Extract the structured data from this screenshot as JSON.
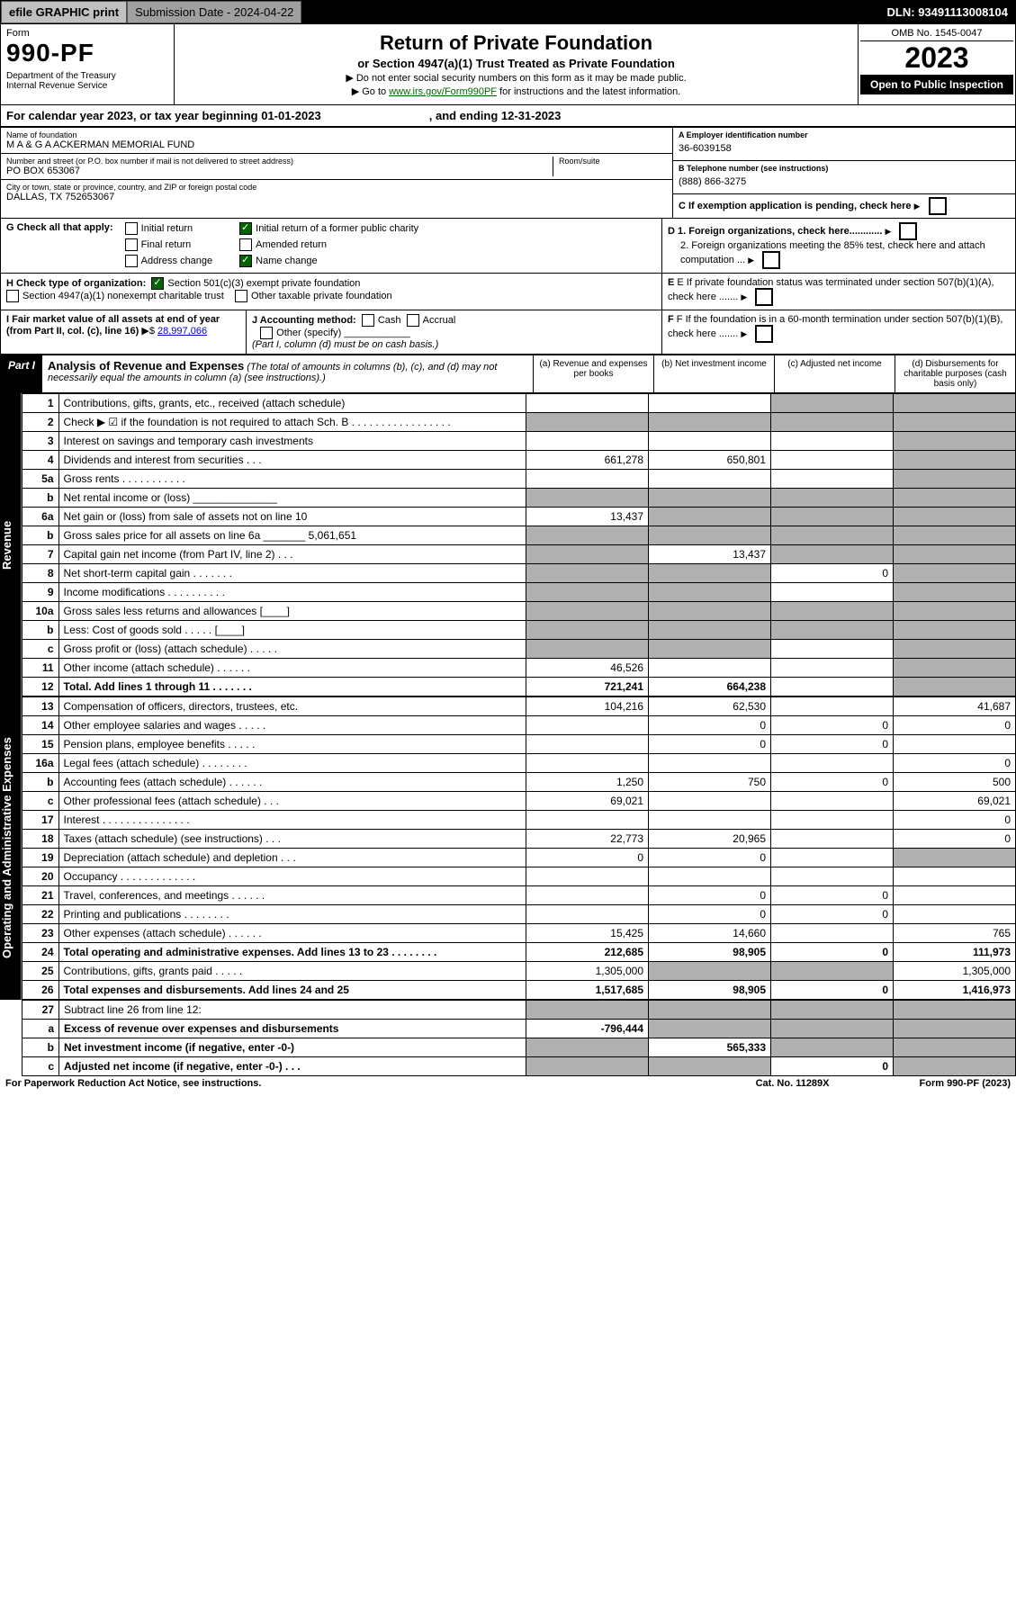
{
  "topbar": {
    "efile": "efile GRAPHIC print",
    "subdate_label": "Submission Date - 2024-04-22",
    "dln": "DLN: 93491113008104"
  },
  "header": {
    "form_word": "Form",
    "form_num": "990-PF",
    "dept": "Department of the Treasury\nInternal Revenue Service",
    "title": "Return of Private Foundation",
    "subtitle": "or Section 4947(a)(1) Trust Treated as Private Foundation",
    "note1": "▶ Do not enter social security numbers on this form as it may be made public.",
    "note2_pre": "▶ Go to ",
    "note2_link": "www.irs.gov/Form990PF",
    "note2_post": " for instructions and the latest information.",
    "omb": "OMB No. 1545-0047",
    "year": "2023",
    "open": "Open to Public Inspection"
  },
  "cal": {
    "text_a": "For calendar year 2023, or tax year beginning 01-01-2023",
    "text_b": ", and ending 12-31-2023"
  },
  "id": {
    "name_lbl": "Name of foundation",
    "name": "M A & G A ACKERMAN MEMORIAL FUND",
    "ein_lbl": "A Employer identification number",
    "ein": "36-6039158",
    "addr_lbl": "Number and street (or P.O. box number if mail is not delivered to street address)",
    "addr": "PO BOX 653067",
    "room_lbl": "Room/suite",
    "tel_lbl": "B Telephone number (see instructions)",
    "tel": "(888) 866-3275",
    "city_lbl": "City or town, state or province, country, and ZIP or foreign postal code",
    "city": "DALLAS, TX  752653067",
    "c_lbl": "C If exemption application is pending, check here"
  },
  "g": {
    "lead": "G Check all that apply:",
    "initial": "Initial return",
    "initial_former": "Initial return of a former public charity",
    "final": "Final return",
    "amended": "Amended return",
    "addr": "Address change",
    "name": "Name change"
  },
  "d": {
    "d1": "D 1. Foreign organizations, check here............",
    "d2": "2. Foreign organizations meeting the 85% test, check here and attach computation ..."
  },
  "h": {
    "lead": "H Check type of organization:",
    "s501": "Section 501(c)(3) exempt private foundation",
    "s4947": "Section 4947(a)(1) nonexempt charitable trust",
    "other": "Other taxable private foundation"
  },
  "e": "E If private foundation status was terminated under section 507(b)(1)(A), check here .......",
  "i": {
    "lead": "I Fair market value of all assets at end of year (from Part II, col. (c), line 16)",
    "val": "28,997,066"
  },
  "j": {
    "lead": "J Accounting method:",
    "cash": "Cash",
    "accrual": "Accrual",
    "other": "Other (specify)",
    "note": "(Part I, column (d) must be on cash basis.)"
  },
  "f": "F If the foundation is in a 60-month termination under section 507(b)(1)(B), check here .......",
  "part1": {
    "label": "Part I",
    "title": "Analysis of Revenue and Expenses",
    "note": " (The total of amounts in columns (b), (c), and (d) may not necessarily equal the amounts in column (a) (see instructions).)",
    "cols": {
      "a": "(a) Revenue and expenses per books",
      "b": "(b) Net investment income",
      "c": "(c) Adjusted net income",
      "d": "(d) Disbursements for charitable purposes (cash basis only)"
    }
  },
  "sidelabels": {
    "rev": "Revenue",
    "exp": "Operating and Administrative Expenses"
  },
  "rows": [
    {
      "n": "1",
      "d": "Contributions, gifts, grants, etc., received (attach schedule)",
      "a": "",
      "b": "",
      "c": "s",
      "dd": "s"
    },
    {
      "n": "2",
      "d": "Check ▶ ☑ if the foundation is not required to attach Sch. B  . . . . . . . . . . . . . . . . .",
      "a": "s",
      "b": "s",
      "c": "s",
      "dd": "s"
    },
    {
      "n": "3",
      "d": "Interest on savings and temporary cash investments",
      "a": "",
      "b": "",
      "c": "",
      "dd": "s"
    },
    {
      "n": "4",
      "d": "Dividends and interest from securities  . . .",
      "a": "661,278",
      "b": "650,801",
      "c": "",
      "dd": "s"
    },
    {
      "n": "5a",
      "d": "Gross rents  . . . . . . . . . . .",
      "a": "",
      "b": "",
      "c": "",
      "dd": "s"
    },
    {
      "n": "b",
      "d": "Net rental income or (loss)  ______________",
      "a": "s",
      "b": "s",
      "c": "s",
      "dd": "s"
    },
    {
      "n": "6a",
      "d": "Net gain or (loss) from sale of assets not on line 10",
      "a": "13,437",
      "b": "s",
      "c": "s",
      "dd": "s"
    },
    {
      "n": "b",
      "d": "Gross sales price for all assets on line 6a _______ 5,061,651",
      "a": "s",
      "b": "s",
      "c": "s",
      "dd": "s"
    },
    {
      "n": "7",
      "d": "Capital gain net income (from Part IV, line 2)  . . .",
      "a": "s",
      "b": "13,437",
      "c": "s",
      "dd": "s"
    },
    {
      "n": "8",
      "d": "Net short-term capital gain  . . . . . . .",
      "a": "s",
      "b": "s",
      "c": "0",
      "dd": "s"
    },
    {
      "n": "9",
      "d": "Income modifications . . . . . . . . . .",
      "a": "s",
      "b": "s",
      "c": "",
      "dd": "s"
    },
    {
      "n": "10a",
      "d": "Gross sales less returns and allowances  [____]",
      "a": "s",
      "b": "s",
      "c": "s",
      "dd": "s"
    },
    {
      "n": "b",
      "d": "Less: Cost of goods sold  . . . . .  [____]",
      "a": "s",
      "b": "s",
      "c": "s",
      "dd": "s"
    },
    {
      "n": "c",
      "d": "Gross profit or (loss) (attach schedule)  . . . . .",
      "a": "s",
      "b": "s",
      "c": "",
      "dd": "s"
    },
    {
      "n": "11",
      "d": "Other income (attach schedule)  . . . . . .",
      "a": "46,526",
      "b": "",
      "c": "",
      "dd": "s"
    },
    {
      "n": "12",
      "d": "Total. Add lines 1 through 11  . . . . . . .",
      "a": "721,241",
      "b": "664,238",
      "c": "",
      "dd": "s",
      "bold": true
    }
  ],
  "exprows": [
    {
      "n": "13",
      "d": "Compensation of officers, directors, trustees, etc.",
      "a": "104,216",
      "b": "62,530",
      "c": "",
      "dd": "41,687"
    },
    {
      "n": "14",
      "d": "Other employee salaries and wages  . . . . .",
      "a": "",
      "b": "0",
      "c": "0",
      "dd": "0"
    },
    {
      "n": "15",
      "d": "Pension plans, employee benefits  . . . . .",
      "a": "",
      "b": "0",
      "c": "0",
      "dd": ""
    },
    {
      "n": "16a",
      "d": "Legal fees (attach schedule) . . . . . . . .",
      "a": "",
      "b": "",
      "c": "",
      "dd": "0"
    },
    {
      "n": "b",
      "d": "Accounting fees (attach schedule) . . . . . .",
      "a": "1,250",
      "b": "750",
      "c": "0",
      "dd": "500"
    },
    {
      "n": "c",
      "d": "Other professional fees (attach schedule)  . . .",
      "a": "69,021",
      "b": "",
      "c": "",
      "dd": "69,021"
    },
    {
      "n": "17",
      "d": "Interest . . . . . . . . . . . . . . .",
      "a": "",
      "b": "",
      "c": "",
      "dd": "0"
    },
    {
      "n": "18",
      "d": "Taxes (attach schedule) (see instructions)  . . .",
      "a": "22,773",
      "b": "20,965",
      "c": "",
      "dd": "0"
    },
    {
      "n": "19",
      "d": "Depreciation (attach schedule) and depletion  . . .",
      "a": "0",
      "b": "0",
      "c": "",
      "dd": "s"
    },
    {
      "n": "20",
      "d": "Occupancy . . . . . . . . . . . . .",
      "a": "",
      "b": "",
      "c": "",
      "dd": ""
    },
    {
      "n": "21",
      "d": "Travel, conferences, and meetings . . . . . .",
      "a": "",
      "b": "0",
      "c": "0",
      "dd": ""
    },
    {
      "n": "22",
      "d": "Printing and publications . . . . . . . .",
      "a": "",
      "b": "0",
      "c": "0",
      "dd": ""
    },
    {
      "n": "23",
      "d": "Other expenses (attach schedule) . . . . . .",
      "a": "15,425",
      "b": "14,660",
      "c": "",
      "dd": "765"
    },
    {
      "n": "24",
      "d": "Total operating and administrative expenses. Add lines 13 to 23  . . . . . . . .",
      "a": "212,685",
      "b": "98,905",
      "c": "0",
      "dd": "111,973",
      "bold": true
    },
    {
      "n": "25",
      "d": "Contributions, gifts, grants paid  . . . . .",
      "a": "1,305,000",
      "b": "s",
      "c": "s",
      "dd": "1,305,000"
    },
    {
      "n": "26",
      "d": "Total expenses and disbursements. Add lines 24 and 25",
      "a": "1,517,685",
      "b": "98,905",
      "c": "0",
      "dd": "1,416,973",
      "bold": true
    }
  ],
  "row27": [
    {
      "n": "27",
      "d": "Subtract line 26 from line 12:",
      "a": "s",
      "b": "s",
      "c": "s",
      "dd": "s"
    },
    {
      "n": "a",
      "d": "Excess of revenue over expenses and disbursements",
      "a": "-796,444",
      "b": "s",
      "c": "s",
      "dd": "s",
      "bold": true
    },
    {
      "n": "b",
      "d": "Net investment income (if negative, enter -0-)",
      "a": "s",
      "b": "565,333",
      "c": "s",
      "dd": "s",
      "bold": true
    },
    {
      "n": "c",
      "d": "Adjusted net income (if negative, enter -0-)  . . .",
      "a": "s",
      "b": "s",
      "c": "0",
      "dd": "s",
      "bold": true
    }
  ],
  "footer": {
    "pra": "For Paperwork Reduction Act Notice, see instructions.",
    "cat": "Cat. No. 11289X",
    "form": "Form 990-PF (2023)"
  }
}
